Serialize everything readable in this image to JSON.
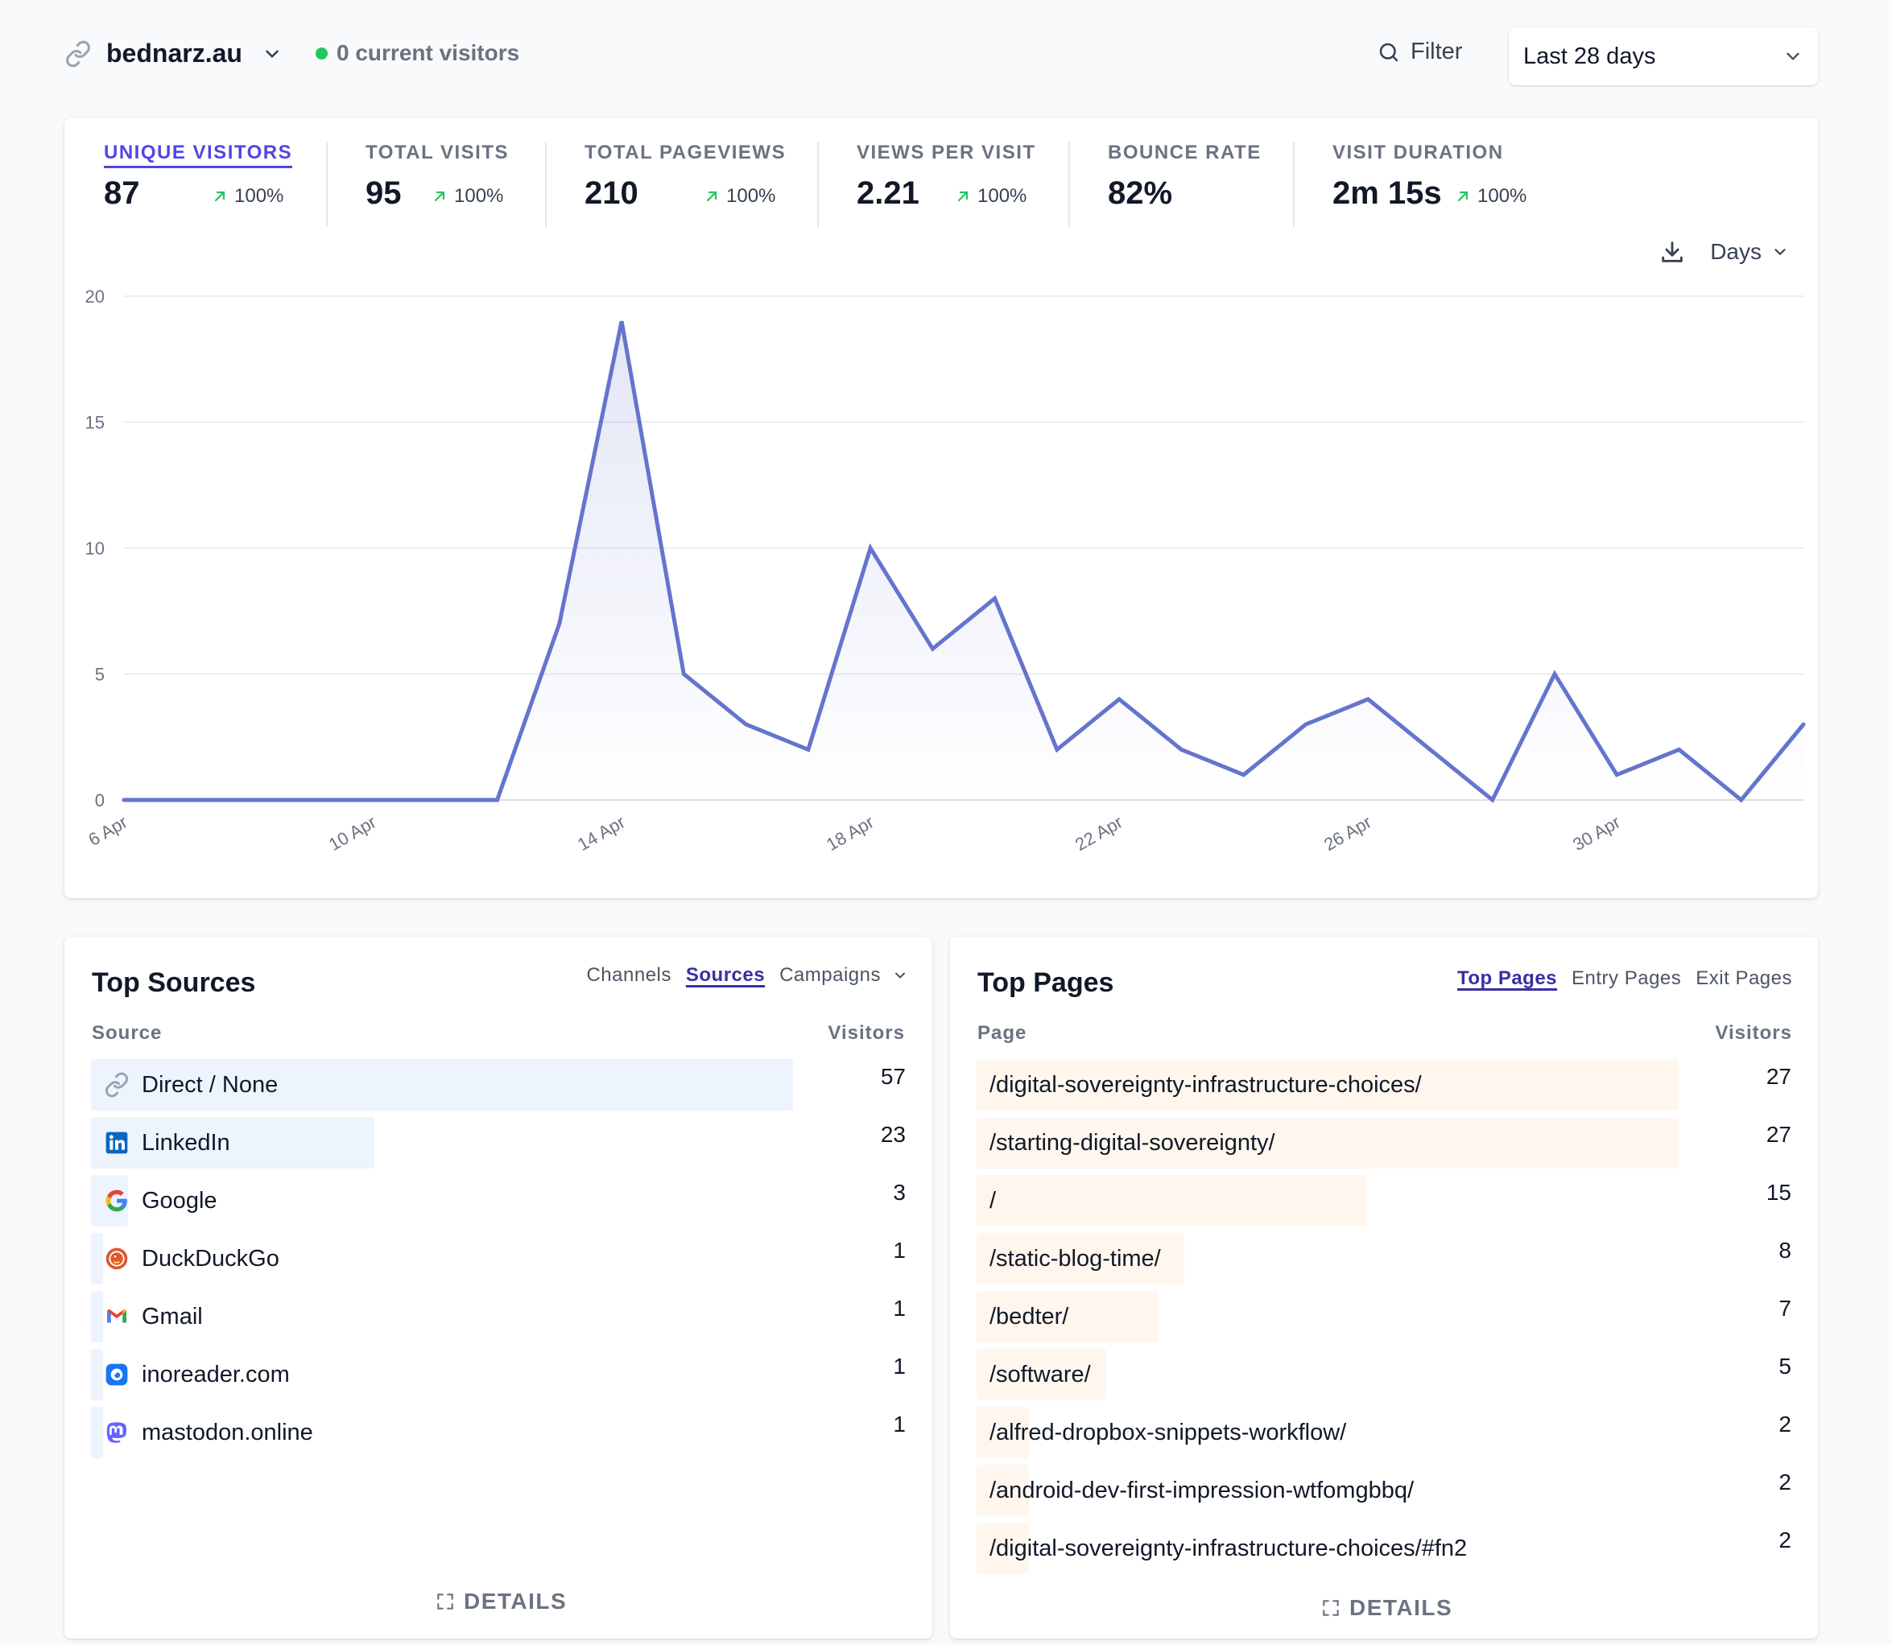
{
  "header": {
    "site": "bednarz.au",
    "current_visitors": "0 current visitors",
    "filter_label": "Filter",
    "date_range": "Last 28 days"
  },
  "metrics": [
    {
      "label": "UNIQUE VISITORS",
      "value": "87",
      "change": "100%",
      "active": true
    },
    {
      "label": "TOTAL VISITS",
      "value": "95",
      "change": "100%"
    },
    {
      "label": "TOTAL PAGEVIEWS",
      "value": "210",
      "change": "100%"
    },
    {
      "label": "VIEWS PER VISIT",
      "value": "2.21",
      "change": "100%"
    },
    {
      "label": "BOUNCE RATE",
      "value": "82%",
      "change": ""
    },
    {
      "label": "VISIT DURATION",
      "value": "2m 15s",
      "change": "100%"
    }
  ],
  "chart_controls": {
    "interval": "Days"
  },
  "chart_data": {
    "type": "area",
    "x": [
      "6 Apr",
      "7 Apr",
      "8 Apr",
      "9 Apr",
      "10 Apr",
      "11 Apr",
      "12 Apr",
      "13 Apr",
      "14 Apr",
      "15 Apr",
      "16 Apr",
      "17 Apr",
      "18 Apr",
      "19 Apr",
      "20 Apr",
      "21 Apr",
      "22 Apr",
      "23 Apr",
      "24 Apr",
      "25 Apr",
      "26 Apr",
      "27 Apr",
      "28 Apr",
      "29 Apr",
      "30 Apr",
      "1 May",
      "2 May",
      "3 May"
    ],
    "values": [
      0,
      0,
      0,
      0,
      0,
      0,
      0,
      7,
      19,
      5,
      3,
      2,
      10,
      6,
      8,
      2,
      4,
      2,
      1,
      3,
      4,
      2,
      0,
      5,
      1,
      2,
      0,
      3
    ],
    "x_tick_labels": [
      "6 Apr",
      "10 Apr",
      "14 Apr",
      "18 Apr",
      "22 Apr",
      "26 Apr",
      "30 Apr"
    ],
    "y_ticks": [
      0,
      5,
      10,
      15,
      20
    ],
    "ylim": [
      0,
      20
    ],
    "grid": true,
    "line_color": "#6574cd",
    "title": "",
    "xlabel": "",
    "ylabel": ""
  },
  "sources": {
    "title": "Top Sources",
    "tabs": [
      {
        "label": "Channels"
      },
      {
        "label": "Sources",
        "active": true
      },
      {
        "label": "Campaigns"
      }
    ],
    "col_source": "Source",
    "col_visitors": "Visitors",
    "rows": [
      {
        "name": "Direct / None",
        "visitors": 57,
        "icon": "link-icon"
      },
      {
        "name": "LinkedIn",
        "visitors": 23,
        "icon": "linkedin-icon"
      },
      {
        "name": "Google",
        "visitors": 3,
        "icon": "google-icon"
      },
      {
        "name": "DuckDuckGo",
        "visitors": 1,
        "icon": "duckduckgo-icon"
      },
      {
        "name": "Gmail",
        "visitors": 1,
        "icon": "gmail-icon"
      },
      {
        "name": "inoreader.com",
        "visitors": 1,
        "icon": "inoreader-icon"
      },
      {
        "name": "mastodon.online",
        "visitors": 1,
        "icon": "mastodon-icon"
      }
    ],
    "bar_color": "#eef4fd",
    "details_label": "DETAILS"
  },
  "pages": {
    "title": "Top Pages",
    "tabs": [
      {
        "label": "Top Pages",
        "active": true
      },
      {
        "label": "Entry Pages"
      },
      {
        "label": "Exit Pages"
      }
    ],
    "col_page": "Page",
    "col_visitors": "Visitors",
    "rows": [
      {
        "path": "/digital-sovereignty-infrastructure-choices/",
        "visitors": 27
      },
      {
        "path": "/starting-digital-sovereignty/",
        "visitors": 27
      },
      {
        "path": "/",
        "visitors": 15
      },
      {
        "path": "/static-blog-time/",
        "visitors": 8
      },
      {
        "path": "/bedter/",
        "visitors": 7
      },
      {
        "path": "/software/",
        "visitors": 5
      },
      {
        "path": "/alfred-dropbox-snippets-workflow/",
        "visitors": 2
      },
      {
        "path": "/android-dev-first-impression-wtfomgbbq/",
        "visitors": 2
      },
      {
        "path": "/digital-sovereignty-infrastructure-choices/#fn2",
        "visitors": 2
      }
    ],
    "bar_color": "#fff7ed",
    "details_label": "DETAILS"
  }
}
